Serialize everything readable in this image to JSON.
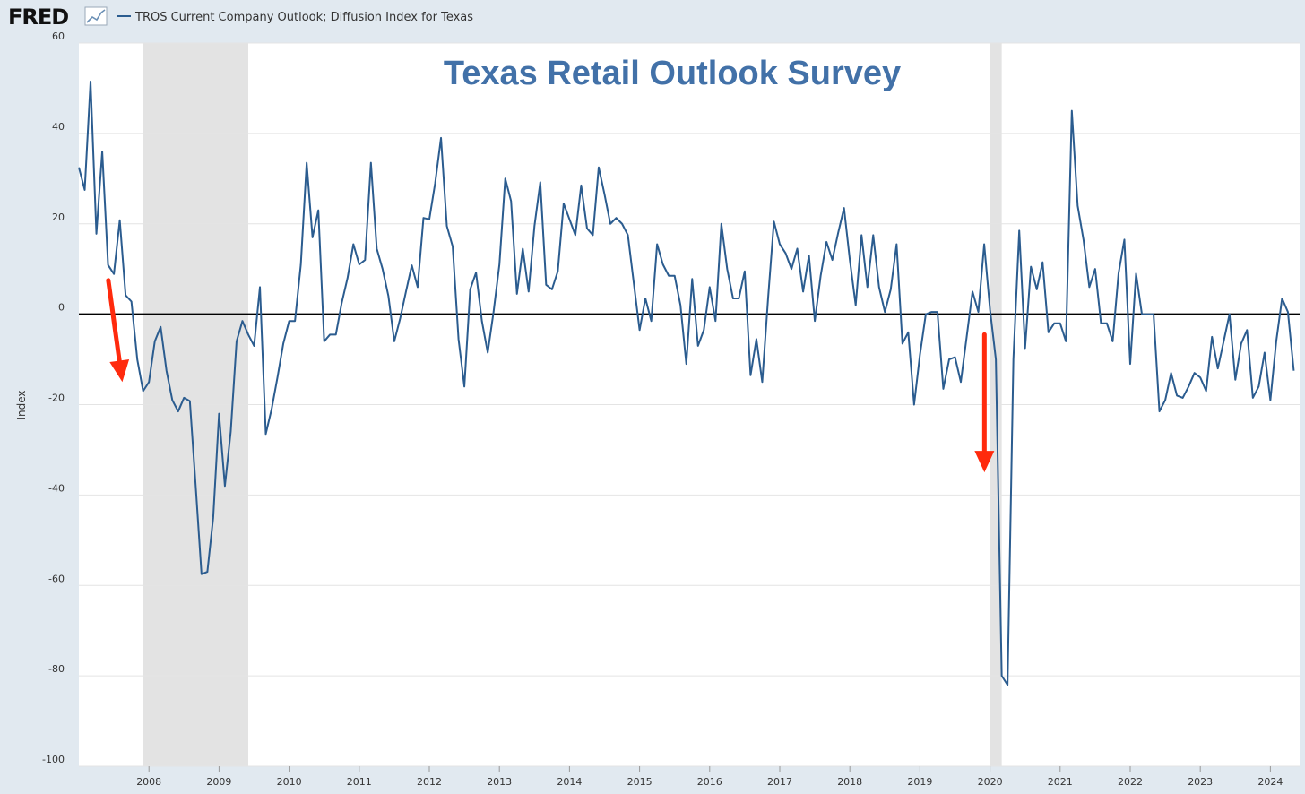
{
  "header": {
    "logo_text": "FRED",
    "legend_label": "TROS Current Company Outlook; Diffusion Index for Texas"
  },
  "colors": {
    "series": "#2b5c8f",
    "recession": "#e3e3e3",
    "zero_line": "#000000",
    "annotation_text": "#4271a8",
    "arrow": "#ff2a0d",
    "background": "#e1e9f0",
    "plot_bg": "#ffffff"
  },
  "chart_data": {
    "type": "line",
    "title": "",
    "xlabel": "",
    "ylabel": "Index",
    "ylim": [
      -100,
      60
    ],
    "xlim": [
      2007.0,
      2024.417
    ],
    "yticks": [
      -100,
      -80,
      -60,
      -40,
      -20,
      0,
      20,
      40,
      60
    ],
    "xticks": [
      2008,
      2009,
      2010,
      2011,
      2012,
      2013,
      2014,
      2015,
      2016,
      2017,
      2018,
      2019,
      2020,
      2021,
      2022,
      2023,
      2024
    ],
    "grid": "horizontal",
    "zero_line": true,
    "annotation": "Texas Retail Outlook Survey",
    "recessions": [
      [
        2007.917,
        2009.417
      ],
      [
        2020.0,
        2020.167
      ]
    ],
    "arrows": [
      {
        "from": [
          2007.42,
          7.5
        ],
        "to": [
          2007.62,
          -15
        ]
      },
      {
        "from": [
          2019.92,
          -4.5
        ],
        "to": [
          2019.92,
          -35
        ]
      }
    ],
    "series": [
      {
        "name": "TROS Current Company Outlook; Diffusion Index for Texas",
        "start": "2007-01",
        "frequency": "monthly",
        "values": [
          32.5,
          27.5,
          51.5,
          17.8,
          36.0,
          10.9,
          8.9,
          20.8,
          4.2,
          2.8,
          -10.0,
          -17.0,
          -15.0,
          -6.0,
          -2.8,
          -12.5,
          -19.0,
          -21.5,
          -18.5,
          -19.2,
          -38.0,
          -57.5,
          -57.0,
          -45.0,
          -22.0,
          -38.0,
          -26.0,
          -6.0,
          -1.5,
          -4.5,
          -7.0,
          6.0,
          -26.5,
          -21.0,
          -14.0,
          -6.5,
          -1.5,
          -1.5,
          11.0,
          33.5,
          17.0,
          23.0,
          -6.0,
          -4.5,
          -4.5,
          2.5,
          8.0,
          15.5,
          11.0,
          12.0,
          33.5,
          14.5,
          10.0,
          4.0,
          -6.0,
          -1.0,
          5.0,
          10.8,
          6.0,
          21.3,
          21.0,
          29.0,
          39.0,
          19.5,
          15.0,
          -5.5,
          -16.0,
          5.5,
          9.2,
          -1.5,
          -8.5,
          0.5,
          11.0,
          30.0,
          25.0,
          4.5,
          14.5,
          5.0,
          19.5,
          29.2,
          6.5,
          5.5,
          9.5,
          24.5,
          21.0,
          17.5,
          28.5,
          19.0,
          17.5,
          32.5,
          26.5,
          20.0,
          21.3,
          20.0,
          17.5,
          7.0,
          -3.5,
          3.5,
          -1.5,
          15.5,
          11.0,
          8.5,
          8.5,
          2.0,
          -11.0,
          7.8,
          -7.0,
          -3.5,
          6.0,
          -1.5,
          20.0,
          10.0,
          3.5,
          3.5,
          9.5,
          -13.5,
          -5.5,
          -15.0,
          3.5,
          20.5,
          15.5,
          13.5,
          10.0,
          14.5,
          5.0,
          13.0,
          -1.5,
          8.5,
          16.0,
          12.0,
          18.0,
          23.5,
          12.0,
          2.0,
          17.5,
          6.0,
          17.5,
          6.0,
          0.5,
          5.5,
          15.5,
          -6.5,
          -4.0,
          -20.0,
          -9.0,
          0.0,
          0.5,
          0.5,
          -16.5,
          -10.0,
          -9.5,
          -15.0,
          -5.0,
          5.0,
          0.5,
          15.5,
          1.0,
          -10.0,
          -80.0,
          -82.0,
          -10.0,
          18.5,
          -7.5,
          10.5,
          5.5,
          11.5,
          -4.0,
          -2.0,
          -2.0,
          -6.0,
          45.0,
          24.0,
          16.5,
          6.0,
          10.0,
          -2.0,
          -2.0,
          -6.0,
          9.0,
          16.5,
          -11.0,
          9.0,
          0.0,
          0.0,
          0.0,
          -21.5,
          -19.0,
          -13.0,
          -18.0,
          -18.5,
          -16.0,
          -13.0,
          -14.0,
          -17.0,
          -5.0,
          -12.0,
          -6.0,
          0.0,
          -14.5,
          -6.5,
          -3.5,
          -18.5,
          -16.0,
          -8.5,
          -19.0,
          -6.0,
          3.5,
          0.5,
          -12.5
        ]
      }
    ]
  }
}
